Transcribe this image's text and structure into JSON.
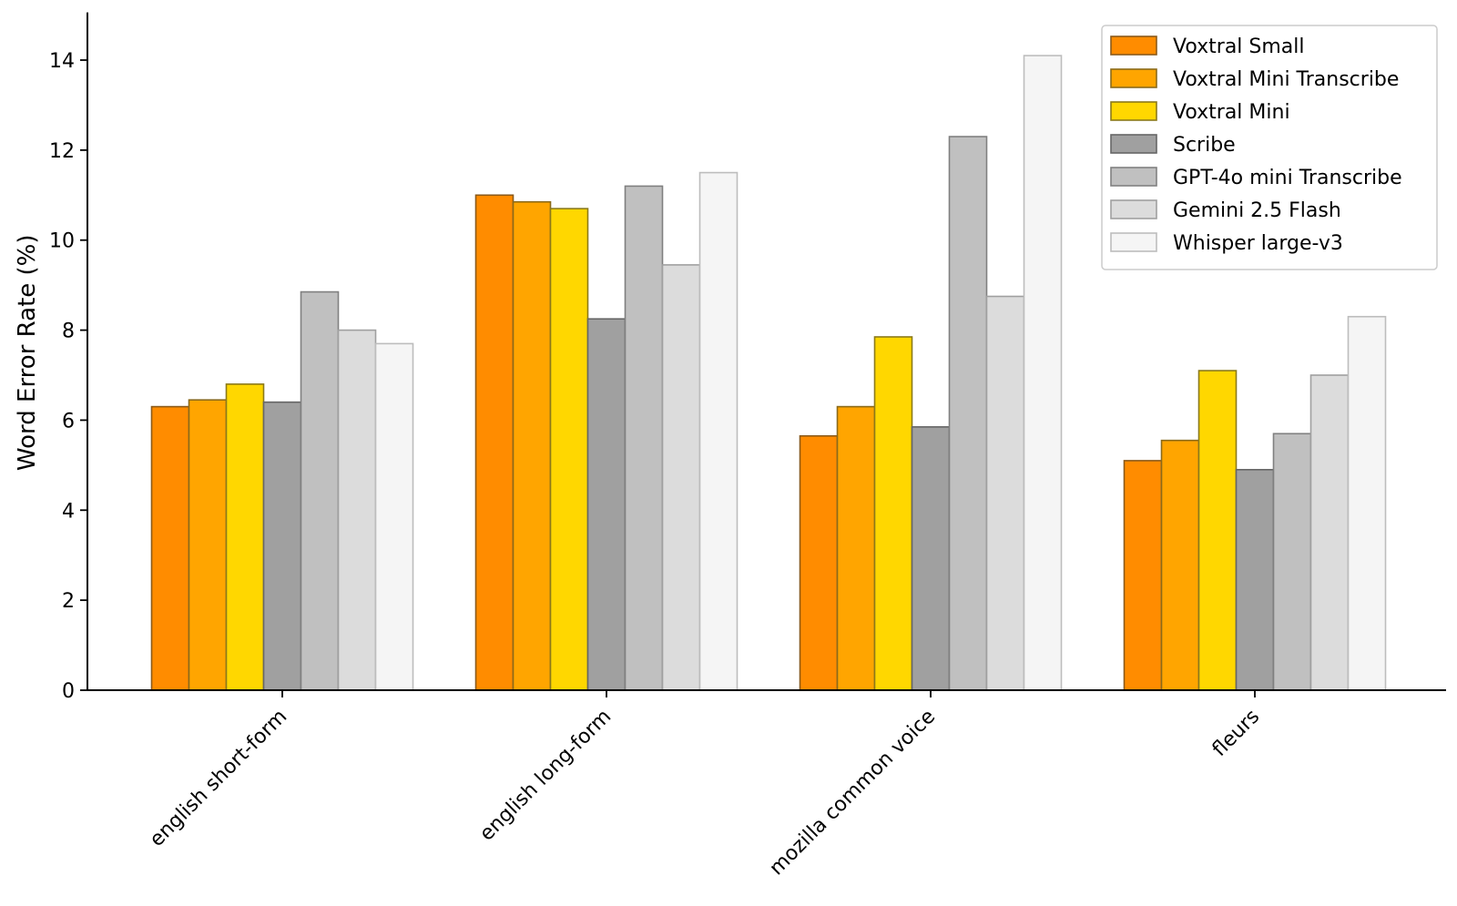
{
  "chart_data": {
    "type": "bar",
    "title": "",
    "xlabel": "",
    "ylabel": "Word Error Rate (%)",
    "ylim": [
      0,
      15
    ],
    "yticks": [
      0,
      2,
      4,
      6,
      8,
      10,
      12,
      14
    ],
    "grid": false,
    "legend_position": "top-right",
    "categories": [
      "english short-form",
      "english long-form",
      "mozilla common voice",
      "fleurs"
    ],
    "series": [
      {
        "name": "Voxtral Small",
        "color": "#FF8C00",
        "edge": "#8B5A1A",
        "values": [
          6.3,
          11.0,
          5.65,
          5.1
        ]
      },
      {
        "name": "Voxtral Mini Transcribe",
        "color": "#FFA500",
        "edge": "#8B6A1A",
        "values": [
          6.45,
          10.85,
          6.3,
          5.55
        ]
      },
      {
        "name": "Voxtral Mini",
        "color": "#FFD700",
        "edge": "#8B7A1A",
        "values": [
          6.8,
          10.7,
          7.85,
          7.1
        ]
      },
      {
        "name": "Scribe",
        "color": "#A0A0A0",
        "edge": "#666666",
        "values": [
          6.4,
          8.25,
          5.85,
          4.9
        ]
      },
      {
        "name": "GPT-4o mini Transcribe",
        "color": "#C0C0C0",
        "edge": "#808080",
        "values": [
          8.85,
          11.2,
          12.3,
          5.7
        ]
      },
      {
        "name": "Gemini 2.5 Flash",
        "color": "#DCDCDC",
        "edge": "#A0A0A0",
        "values": [
          8.0,
          9.45,
          8.75,
          7.0
        ]
      },
      {
        "name": "Whisper large-v3",
        "color": "#F5F5F5",
        "edge": "#BDBDBD",
        "values": [
          7.7,
          11.5,
          14.1,
          8.3
        ]
      }
    ]
  }
}
